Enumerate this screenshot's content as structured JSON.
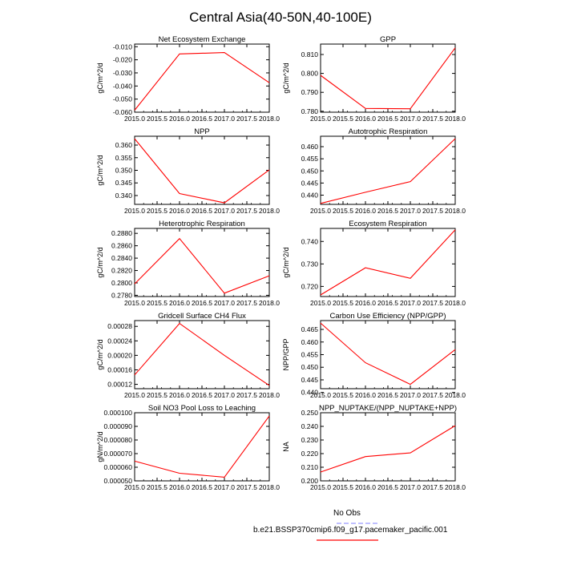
{
  "title": "Central Asia(40-50N,40-100E)",
  "legend": {
    "obs_label": "No Obs",
    "model_label": "b.e21.BSSP370cmip6.f09_g17.pacemaker_pacific.001",
    "obs_color": "#9999ff",
    "model_color": "#ff0000"
  },
  "chart_data": [
    {
      "type": "line",
      "title": "Net Ecosystem Exchange",
      "ylabel": "gC/m^2/d",
      "x": [
        2015.0,
        2016.0,
        2017.0,
        2018.0
      ],
      "values": [
        -0.0585,
        -0.0155,
        -0.0145,
        -0.0375
      ],
      "xlim": [
        2015.0,
        2018.0
      ],
      "ylim": [
        -0.06,
        -0.008
      ],
      "xticks": [
        "2015.0",
        "2015.5",
        "2016.0",
        "2016.5",
        "2017.0",
        "2017.5",
        "2018.0"
      ],
      "yticks": [
        -0.06,
        -0.05,
        -0.04,
        -0.03,
        -0.02,
        -0.01
      ],
      "yticklabels": [
        "-0.060",
        "-0.050",
        "-0.040",
        "-0.030",
        "-0.020",
        "-0.010"
      ],
      "color": "#ff0000"
    },
    {
      "type": "line",
      "title": "GPP",
      "ylabel": "gC/m^2/d",
      "x": [
        2015.0,
        2016.0,
        2017.0,
        2018.0
      ],
      "values": [
        0.799,
        0.7815,
        0.7813,
        0.8135
      ],
      "xlim": [
        2015.0,
        2018.0
      ],
      "ylim": [
        0.7795,
        0.8155
      ],
      "xticks": [
        "2015.0",
        "2015.5",
        "2016.0",
        "2016.5",
        "2017.0",
        "2017.5",
        "2018.0"
      ],
      "yticks": [
        0.78,
        0.79,
        0.8,
        0.81
      ],
      "yticklabels": [
        "0.780",
        "0.790",
        "0.800",
        "0.810"
      ],
      "color": "#ff0000"
    },
    {
      "type": "line",
      "title": "NPP",
      "ylabel": "gC/m^2/d",
      "x": [
        2015.0,
        2016.0,
        2017.0,
        2018.0
      ],
      "values": [
        0.3625,
        0.3408,
        0.3371,
        0.3502
      ],
      "xlim": [
        2015.0,
        2018.0
      ],
      "ylim": [
        0.3365,
        0.3635
      ],
      "xticks": [
        "2015.0",
        "2015.5",
        "2016.0",
        "2016.5",
        "2017.0",
        "2017.5",
        "2018.0"
      ],
      "yticks": [
        0.34,
        0.345,
        0.35,
        0.355,
        0.36
      ],
      "yticklabels": [
        "0.340",
        "0.345",
        "0.350",
        "0.355",
        "0.360"
      ],
      "color": "#ff0000"
    },
    {
      "type": "line",
      "title": "Autotrophic Respiration",
      "ylabel": "",
      "x": [
        2015.0,
        2016.0,
        2017.0,
        2018.0
      ],
      "values": [
        0.4366,
        0.4412,
        0.4456,
        0.4633
      ],
      "xlim": [
        2015.0,
        2018.0
      ],
      "ylim": [
        0.4362,
        0.4643
      ],
      "xticks": [
        "2015.0",
        "2015.5",
        "2016.0",
        "2016.5",
        "2017.0",
        "2017.5",
        "2018.0"
      ],
      "yticks": [
        0.44,
        0.445,
        0.45,
        0.455,
        0.46
      ],
      "yticklabels": [
        "0.440",
        "0.445",
        "0.450",
        "0.455",
        "0.460"
      ],
      "color": "#ff0000"
    },
    {
      "type": "line",
      "title": "Heterotrophic Respiration",
      "ylabel": "gC/m^2/d",
      "x": [
        2015.0,
        2016.0,
        2017.0,
        2018.0
      ],
      "values": [
        0.27985,
        0.28715,
        0.27835,
        0.28115
      ],
      "xlim": [
        2015.0,
        2018.0
      ],
      "ylim": [
        0.2778,
        0.2888
      ],
      "xticks": [
        "2015.0",
        "2015.5",
        "2016.0",
        "2016.5",
        "2017.0",
        "2017.5",
        "2018.0"
      ],
      "yticks": [
        0.278,
        0.28,
        0.282,
        0.284,
        0.286,
        0.288
      ],
      "yticklabels": [
        "0.2780",
        "0.2800",
        "0.2820",
        "0.2840",
        "0.2860",
        "0.2880"
      ],
      "color": "#ff0000"
    },
    {
      "type": "line",
      "title": "Ecosystem Respiration",
      "ylabel": "gC/m^2/d",
      "x": [
        2015.0,
        2016.0,
        2017.0,
        2018.0
      ],
      "values": [
        0.7162,
        0.7283,
        0.7236,
        0.7452
      ],
      "xlim": [
        2015.0,
        2018.0
      ],
      "ylim": [
        0.7155,
        0.7458
      ],
      "xticks": [
        "2015.0",
        "2015.5",
        "2016.0",
        "2016.5",
        "2017.0",
        "2017.5",
        "2018.0"
      ],
      "yticks": [
        0.72,
        0.73,
        0.74
      ],
      "yticklabels": [
        "0.720",
        "0.730",
        "0.740"
      ],
      "color": "#ff0000"
    },
    {
      "type": "line",
      "title": "Gridcell Surface CH4 Flux",
      "ylabel": "gC/m^2/d",
      "x": [
        2015.0,
        2016.0,
        2017.0,
        2018.0
      ],
      "values": [
        0.000146,
        0.000288,
        0.0002,
        0.000117
      ],
      "xlim": [
        2015.0,
        2018.0
      ],
      "ylim": [
        0.000108,
        0.000296
      ],
      "xticks": [
        "2015.0",
        "2015.5",
        "2016.0",
        "2016.5",
        "2017.0",
        "2017.5",
        "2018.0"
      ],
      "yticks": [
        0.00012,
        0.00016,
        0.0002,
        0.00024,
        0.00028
      ],
      "yticklabels": [
        "0.00012",
        "0.00016",
        "0.00020",
        "0.00024",
        "0.00028"
      ],
      "color": "#ff0000"
    },
    {
      "type": "line",
      "title": "Carbon Use Efficiency (NPP/GPP)",
      "ylabel": "NPP/GPP",
      "x": [
        2015.0,
        2016.0,
        2017.0,
        2018.0
      ],
      "values": [
        0.4675,
        0.4518,
        0.4432,
        0.457
      ],
      "xlim": [
        2015.0,
        2018.0
      ],
      "ylim": [
        0.4415,
        0.4685
      ],
      "xticks": [
        "2015.0",
        "2015.5",
        "2016.0",
        "2016.5",
        "2017.0",
        "2017.5",
        "2018.0"
      ],
      "yticks": [
        0.44,
        0.445,
        0.45,
        0.455,
        0.46,
        0.465
      ],
      "yticklabels": [
        "0.440",
        "0.445",
        "0.450",
        "0.455",
        "0.460",
        "0.465"
      ],
      "color": "#ff0000"
    },
    {
      "type": "line",
      "title": "Soil NO3 Pool Loss to Leaching",
      "ylabel": "gN/m^2/d",
      "x": [
        2015.0,
        2016.0,
        2017.0,
        2018.0
      ],
      "values": [
        6.45e-05,
        5.56e-05,
        5.27e-05,
        9.76e-05
      ],
      "xlim": [
        2015.0,
        2018.0
      ],
      "ylim": [
        5e-05,
        0.0001
      ],
      "xticks": [
        "2015.0",
        "2015.5",
        "2016.0",
        "2016.5",
        "2017.0",
        "2017.5",
        "2018.0"
      ],
      "yticks": [
        5e-05,
        6e-05,
        7e-05,
        8e-05,
        9e-05,
        0.0001
      ],
      "yticklabels": [
        "0.000050",
        "0.000060",
        "0.000070",
        "0.000080",
        "0.000090",
        "0.000100"
      ],
      "color": "#ff0000"
    },
    {
      "type": "line",
      "title": "NPP_NUPTAKE/(NPP_NUPTAKE+NPP)",
      "ylabel": "NA",
      "x": [
        2015.0,
        2016.0,
        2017.0,
        2018.0
      ],
      "values": [
        0.2065,
        0.2178,
        0.2205,
        0.2405
      ],
      "xlim": [
        2015.0,
        2018.0
      ],
      "ylim": [
        0.2,
        0.25
      ],
      "xticks": [
        "2015.0",
        "2015.5",
        "2016.0",
        "2016.5",
        "2017.0",
        "2017.5",
        "2018.0"
      ],
      "yticks": [
        0.2,
        0.21,
        0.22,
        0.23,
        0.24,
        0.25
      ],
      "yticklabels": [
        "0.200",
        "0.210",
        "0.220",
        "0.230",
        "0.240",
        "0.250"
      ],
      "color": "#ff0000"
    }
  ]
}
